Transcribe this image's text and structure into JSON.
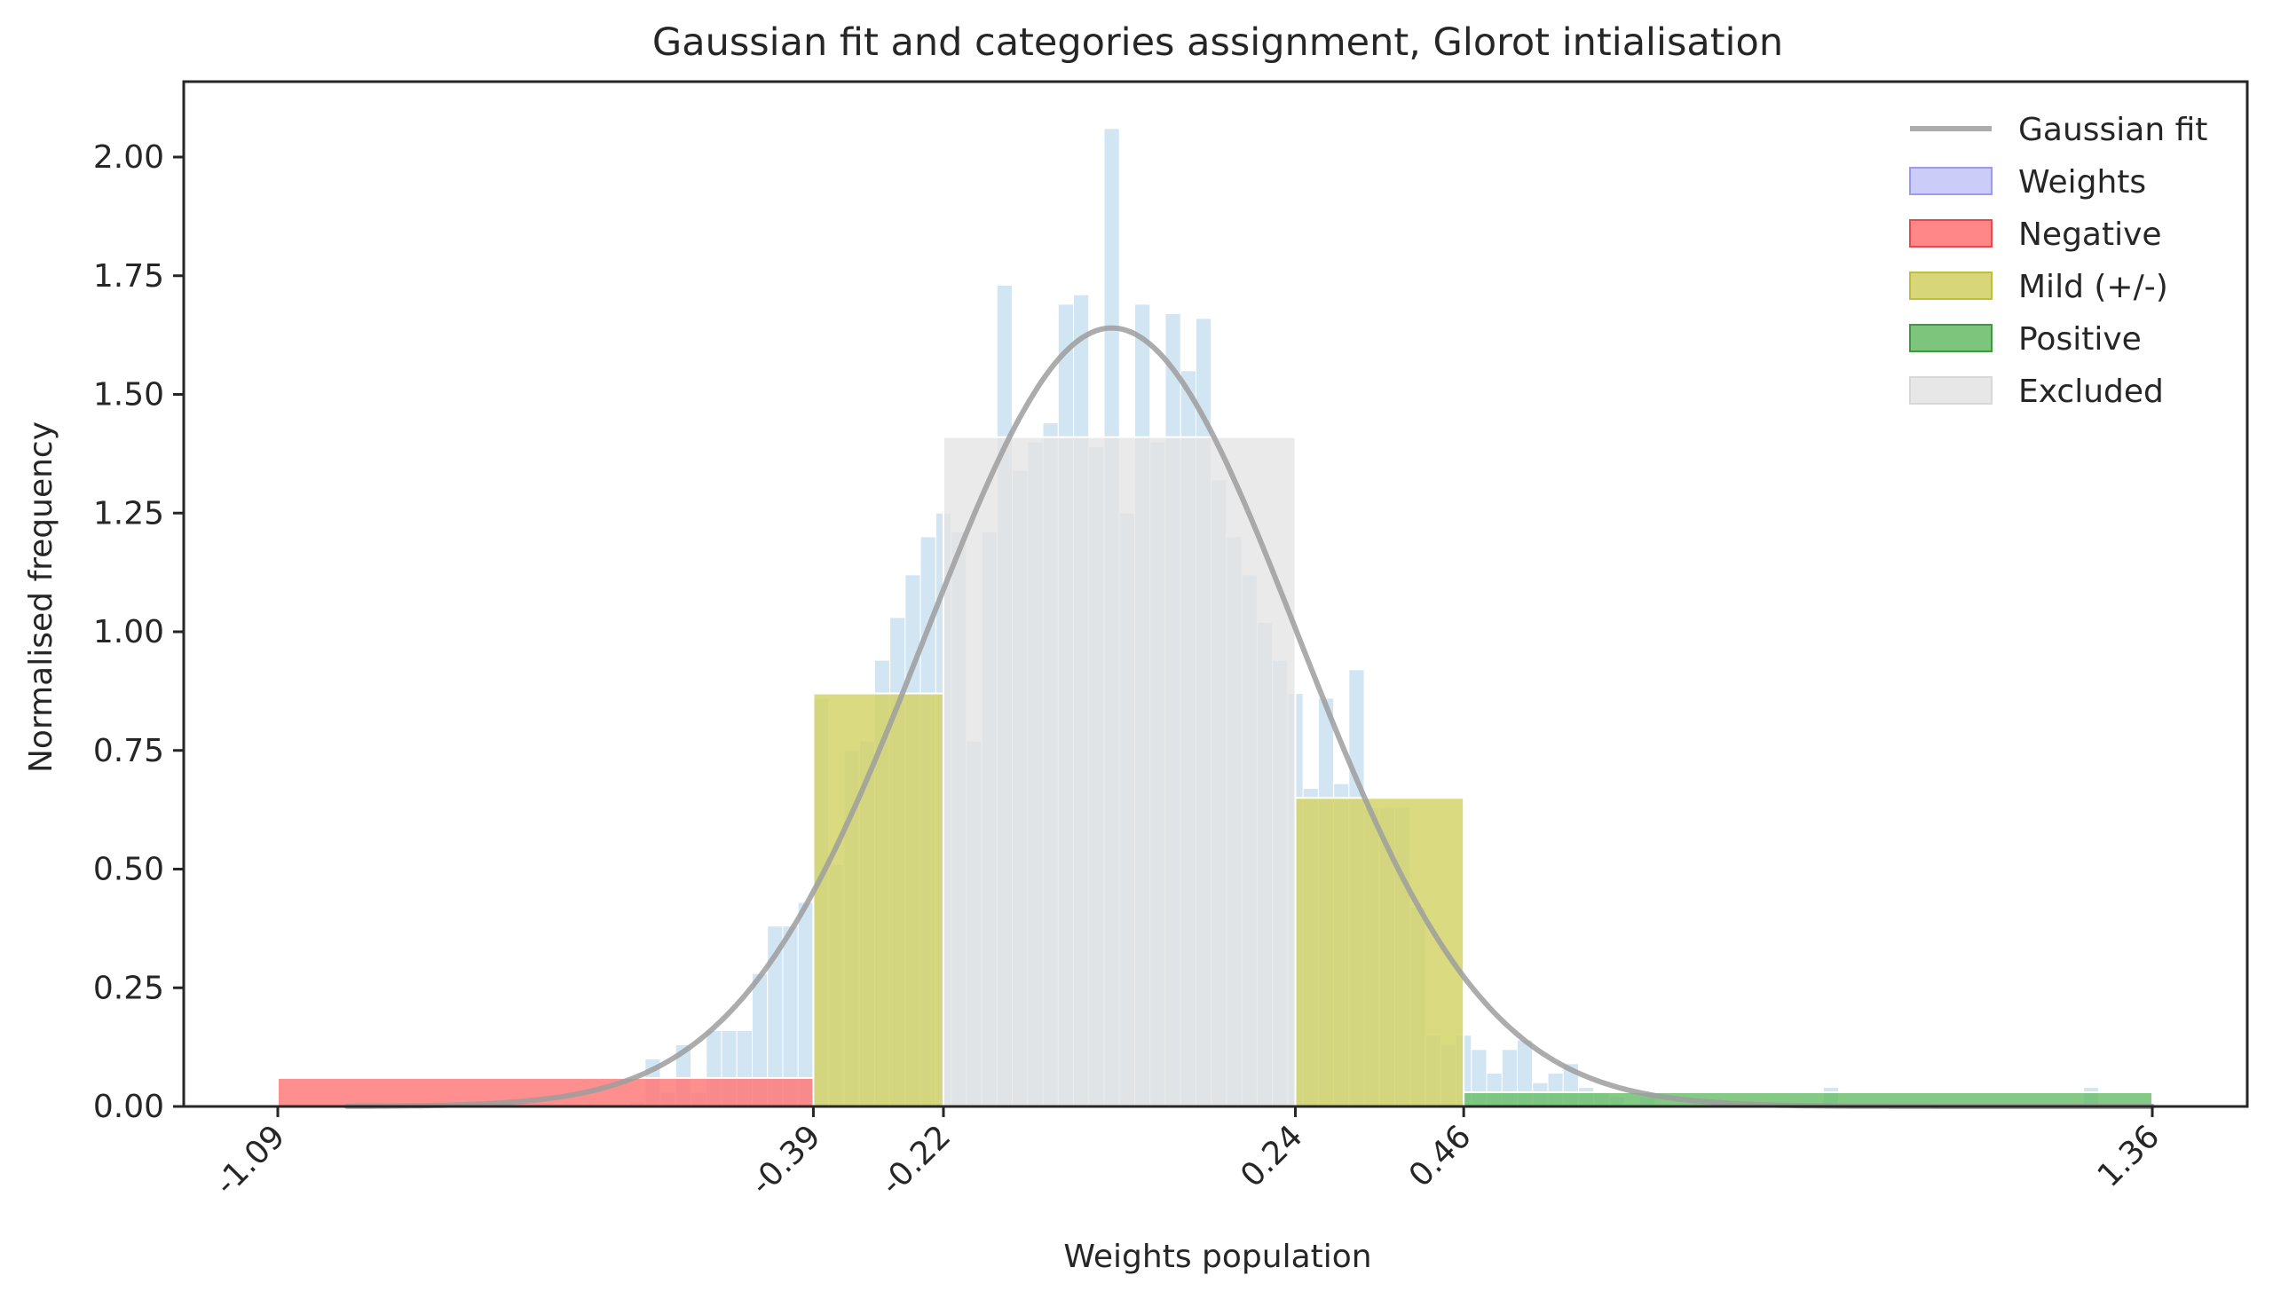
{
  "chart_data": {
    "type": "bar",
    "title": "Gaussian fit and categories assignment, Glorot intialisation",
    "xlabel": "Weights population",
    "ylabel": "Normalised frequency",
    "xlim": [
      -1.2,
      1.56
    ],
    "ylim": [
      0,
      2.15
    ],
    "grid": false,
    "legend_position": "top-right",
    "y_ticks": [
      "0.00",
      "0.25",
      "0.50",
      "0.75",
      "1.00",
      "1.25",
      "1.50",
      "1.75",
      "2.00"
    ],
    "y_tick_values": [
      0,
      0.25,
      0.5,
      0.75,
      1.0,
      1.25,
      1.5,
      1.75,
      2.0
    ],
    "x_ticks": [
      "-1.09",
      "-0.39",
      "-0.22",
      "0.24",
      "0.46",
      "1.36"
    ],
    "x_tick_values": [
      -1.09,
      -0.39,
      -0.22,
      0.24,
      0.46,
      1.36
    ],
    "colors": {
      "gaussian": "#9e9e9e",
      "weights": "#b4d4ea",
      "weights_legend": "#c6c6f7",
      "negative": "#ff7a7a",
      "mild": "#d3d36a",
      "positive": "#6fbf6f",
      "excluded": "#e4e4e4",
      "axis": "#262626"
    },
    "legend": [
      {
        "key": "gaussian",
        "label": "Gaussian fit",
        "kind": "line"
      },
      {
        "key": "weights",
        "label": "Weights",
        "kind": "patch"
      },
      {
        "key": "negative",
        "label": "Negative",
        "kind": "patch"
      },
      {
        "key": "mild",
        "label": "Mild (+/-)",
        "kind": "patch"
      },
      {
        "key": "positive",
        "label": "Positive",
        "kind": "patch"
      },
      {
        "key": "excluded",
        "label": "Excluded",
        "kind": "patch"
      }
    ],
    "gaussian_fit": {
      "mean": 0.0,
      "std": 0.243,
      "amplitude": 1.64
    },
    "weights_histogram": {
      "bins": [
        [
          -0.99,
          -0.95,
          0.01
        ],
        [
          -0.63,
          -0.61,
          0.01
        ],
        [
          -0.61,
          -0.59,
          0.1
        ],
        [
          -0.59,
          -0.57,
          0.03
        ],
        [
          -0.57,
          -0.55,
          0.13
        ],
        [
          -0.55,
          -0.53,
          0.03
        ],
        [
          -0.53,
          -0.51,
          0.16
        ],
        [
          -0.51,
          -0.49,
          0.16
        ],
        [
          -0.49,
          -0.47,
          0.16
        ],
        [
          -0.47,
          -0.45,
          0.28
        ],
        [
          -0.45,
          -0.43,
          0.38
        ],
        [
          -0.43,
          -0.41,
          0.38
        ],
        [
          -0.41,
          -0.39,
          0.43
        ],
        [
          -0.39,
          -0.37,
          0.86
        ],
        [
          -0.37,
          -0.35,
          0.51
        ],
        [
          -0.35,
          -0.33,
          0.75
        ],
        [
          -0.33,
          -0.31,
          0.77
        ],
        [
          -0.31,
          -0.29,
          0.94
        ],
        [
          -0.29,
          -0.27,
          1.03
        ],
        [
          -0.27,
          -0.25,
          1.12
        ],
        [
          -0.25,
          -0.23,
          1.2
        ],
        [
          -0.23,
          -0.21,
          1.25
        ],
        [
          -0.21,
          -0.19,
          1.21
        ],
        [
          -0.19,
          -0.17,
          0.77
        ],
        [
          -0.17,
          -0.15,
          1.21
        ],
        [
          -0.15,
          -0.13,
          1.73
        ],
        [
          -0.13,
          -0.11,
          1.34
        ],
        [
          -0.11,
          -0.09,
          1.4
        ],
        [
          -0.09,
          -0.07,
          1.44
        ],
        [
          -0.07,
          -0.05,
          1.69
        ],
        [
          -0.05,
          -0.03,
          1.71
        ],
        [
          -0.03,
          -0.01,
          1.39
        ],
        [
          -0.01,
          0.01,
          2.06
        ],
        [
          0.01,
          0.03,
          1.25
        ],
        [
          0.03,
          0.05,
          1.69
        ],
        [
          0.05,
          0.07,
          1.4
        ],
        [
          0.07,
          0.09,
          1.67
        ],
        [
          0.09,
          0.11,
          1.55
        ],
        [
          0.11,
          0.13,
          1.66
        ],
        [
          0.13,
          0.15,
          1.32
        ],
        [
          0.15,
          0.17,
          1.2
        ],
        [
          0.17,
          0.19,
          1.12
        ],
        [
          0.19,
          0.21,
          1.02
        ],
        [
          0.21,
          0.23,
          0.94
        ],
        [
          0.23,
          0.25,
          0.87
        ],
        [
          0.25,
          0.27,
          0.67
        ],
        [
          0.27,
          0.29,
          0.86
        ],
        [
          0.29,
          0.31,
          0.68
        ],
        [
          0.31,
          0.33,
          0.92
        ],
        [
          0.33,
          0.35,
          0.63
        ],
        [
          0.35,
          0.37,
          0.63
        ],
        [
          0.37,
          0.39,
          0.63
        ],
        [
          0.39,
          0.41,
          0.42
        ],
        [
          0.41,
          0.43,
          0.15
        ],
        [
          0.43,
          0.45,
          0.13
        ],
        [
          0.45,
          0.47,
          0.15
        ],
        [
          0.47,
          0.49,
          0.12
        ],
        [
          0.49,
          0.51,
          0.07
        ],
        [
          0.51,
          0.53,
          0.12
        ],
        [
          0.53,
          0.55,
          0.14
        ],
        [
          0.55,
          0.57,
          0.05
        ],
        [
          0.57,
          0.59,
          0.07
        ],
        [
          0.59,
          0.61,
          0.09
        ],
        [
          0.61,
          0.63,
          0.04
        ],
        [
          0.63,
          0.65,
          0.03
        ],
        [
          0.65,
          0.67,
          0.02
        ],
        [
          0.69,
          0.71,
          0.02
        ],
        [
          0.93,
          0.95,
          0.04
        ],
        [
          1.27,
          1.29,
          0.04
        ]
      ]
    },
    "category_bars": [
      {
        "category": "negative",
        "x0": -1.09,
        "x1": -0.39,
        "height": 0.06
      },
      {
        "category": "mild",
        "x0": -0.39,
        "x1": -0.22,
        "height": 0.87
      },
      {
        "category": "excluded",
        "x0": -0.22,
        "x1": 0.24,
        "height": 1.41
      },
      {
        "category": "mild",
        "x0": 0.24,
        "x1": 0.46,
        "height": 0.65
      },
      {
        "category": "positive",
        "x0": 0.46,
        "x1": 1.36,
        "height": 0.03
      }
    ]
  }
}
